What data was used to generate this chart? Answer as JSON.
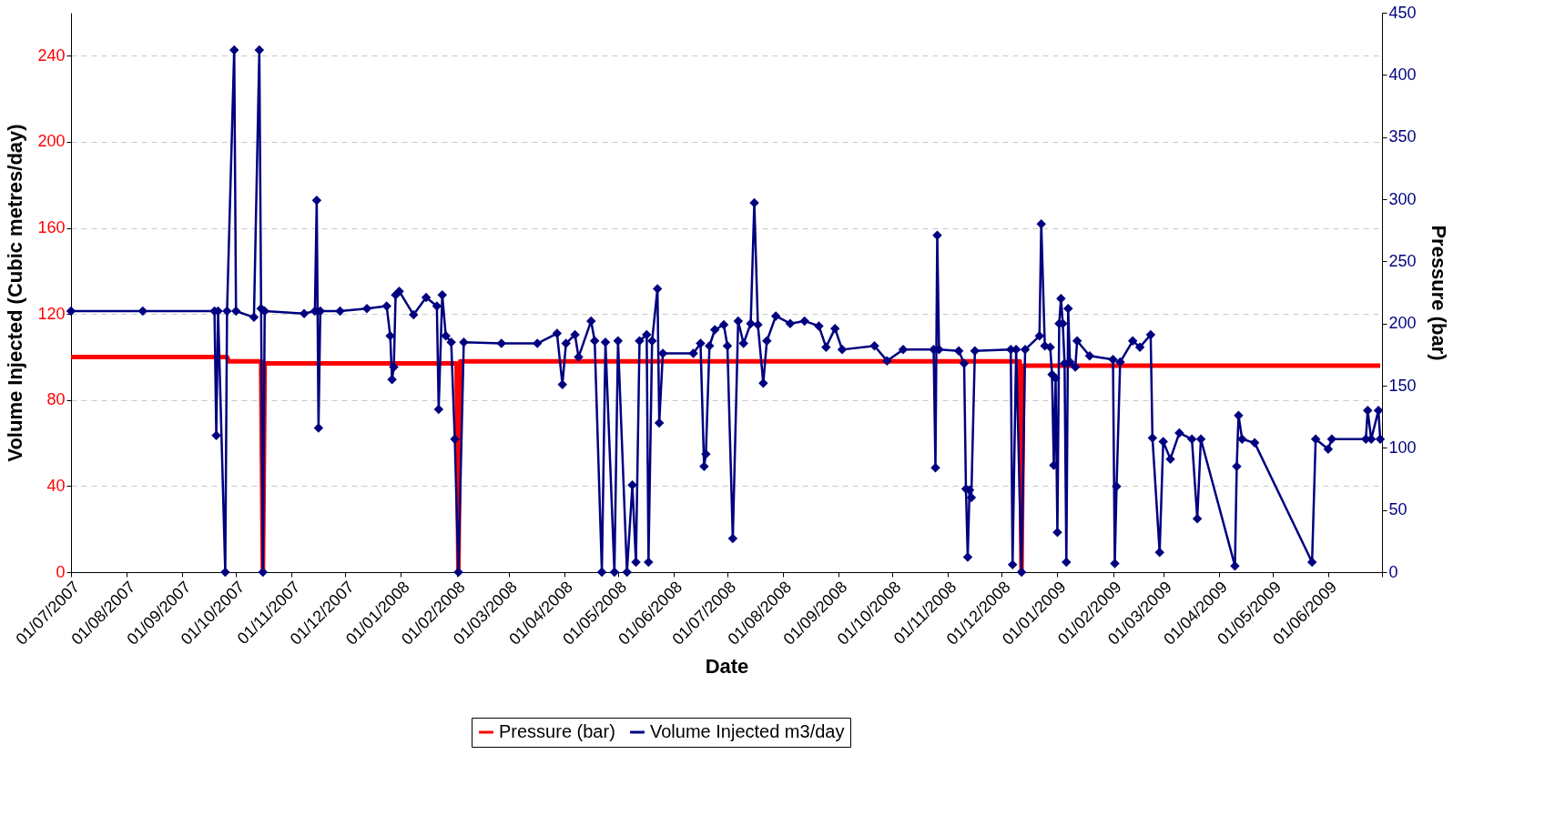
{
  "chart_data": {
    "type": "line",
    "xlabel": "Date",
    "ylabel": "Volume Injected (Cubic metres/day)",
    "y2label": "Pressure (bar)",
    "xlim": [
      "2007-07-01",
      "2009-07-01"
    ],
    "xticks": [
      {
        "value": "2007-07-01",
        "label": "01/07/2007"
      },
      {
        "value": "2007-08-01",
        "label": "01/08/2007"
      },
      {
        "value": "2007-09-01",
        "label": "01/09/2007"
      },
      {
        "value": "2007-10-01",
        "label": "01/10/2007"
      },
      {
        "value": "2007-11-01",
        "label": "01/11/2007"
      },
      {
        "value": "2007-12-01",
        "label": "01/12/2007"
      },
      {
        "value": "2008-01-01",
        "label": "01/01/2008"
      },
      {
        "value": "2008-02-01",
        "label": "01/02/2008"
      },
      {
        "value": "2008-03-01",
        "label": "01/03/2008"
      },
      {
        "value": "2008-04-01",
        "label": "01/04/2008"
      },
      {
        "value": "2008-05-01",
        "label": "01/05/2008"
      },
      {
        "value": "2008-06-01",
        "label": "01/06/2008"
      },
      {
        "value": "2008-07-01",
        "label": "01/07/2008"
      },
      {
        "value": "2008-08-01",
        "label": "01/08/2008"
      },
      {
        "value": "2008-09-01",
        "label": "01/09/2008"
      },
      {
        "value": "2008-10-01",
        "label": "01/10/2008"
      },
      {
        "value": "2008-11-01",
        "label": "01/11/2008"
      },
      {
        "value": "2008-12-01",
        "label": "01/12/2008"
      },
      {
        "value": "2009-01-01",
        "label": "01/01/2009"
      },
      {
        "value": "2009-02-01",
        "label": "01/02/2009"
      },
      {
        "value": "2009-03-01",
        "label": "01/03/2009"
      },
      {
        "value": "2009-04-01",
        "label": "01/04/2009"
      },
      {
        "value": "2009-05-01",
        "label": "01/05/2009"
      },
      {
        "value": "2009-06-01",
        "label": "01/06/2009"
      },
      {
        "value": "2009-07-01",
        "label": null
      }
    ],
    "ylim": [
      0,
      260
    ],
    "yticks": [
      0,
      40,
      80,
      120,
      160,
      200,
      240
    ],
    "y2lim": [
      0,
      450
    ],
    "y2ticks": [
      0,
      50,
      100,
      150,
      200,
      250,
      300,
      350,
      400,
      450
    ],
    "grid": "y",
    "legend": "bottom",
    "series": [
      {
        "name": "Pressure (bar)",
        "color": "#ff0000",
        "line_style": "solid",
        "marker": "none",
        "axis": "y",
        "x": [
          "2007-07-01",
          "2007-09-26",
          "2007-09-27",
          "2007-10-15",
          "2007-10-16",
          "2007-10-17",
          "2008-02-01",
          "2008-02-02",
          "2008-02-03",
          "2008-12-11",
          "2008-12-12",
          "2008-12-13",
          "2009-06-30"
        ],
        "values": [
          100,
          100,
          98,
          98,
          0,
          97,
          97,
          0,
          98,
          98,
          0,
          96,
          96
        ]
      },
      {
        "name": "Volume Injected m3/day",
        "color": "#000080",
        "line_style": "solid",
        "marker": "diamond",
        "axis": "y2",
        "x": [
          "2007-07-01",
          "2007-08-10",
          "2007-09-19",
          "2007-09-20",
          "2007-09-21",
          "2007-09-25",
          "2007-09-26",
          "2007-09-30",
          "2007-10-01",
          "2007-10-11",
          "2007-10-14",
          "2007-10-15",
          "2007-10-16",
          "2007-10-17",
          "2007-11-08",
          "2007-11-14",
          "2007-11-15",
          "2007-11-16",
          "2007-11-17",
          "2007-11-28",
          "2007-12-13",
          "2007-12-24",
          "2007-12-26",
          "2007-12-27",
          "2007-12-28",
          "2007-12-29",
          "2007-12-31",
          "2008-01-08",
          "2008-01-15",
          "2008-01-21",
          "2008-01-22",
          "2008-01-24",
          "2008-01-26",
          "2008-01-29",
          "2008-01-31",
          "2008-02-02",
          "2008-02-05",
          "2008-02-26",
          "2008-03-17",
          "2008-03-28",
          "2008-03-31",
          "2008-04-02",
          "2008-04-07",
          "2008-04-09",
          "2008-04-16",
          "2008-04-18",
          "2008-04-22",
          "2008-04-24",
          "2008-04-29",
          "2008-05-01",
          "2008-05-06",
          "2008-05-09",
          "2008-05-11",
          "2008-05-13",
          "2008-05-17",
          "2008-05-18",
          "2008-05-20",
          "2008-05-23",
          "2008-05-24",
          "2008-05-26",
          "2008-06-12",
          "2008-06-16",
          "2008-06-18",
          "2008-06-19",
          "2008-06-21",
          "2008-06-24",
          "2008-06-29",
          "2008-07-01",
          "2008-07-04",
          "2008-07-07",
          "2008-07-10",
          "2008-07-14",
          "2008-07-16",
          "2008-07-18",
          "2008-07-21",
          "2008-07-23",
          "2008-07-28",
          "2008-08-05",
          "2008-08-13",
          "2008-08-21",
          "2008-08-25",
          "2008-08-30",
          "2008-09-03",
          "2008-09-21",
          "2008-09-28",
          "2008-10-07",
          "2008-10-24",
          "2008-10-25",
          "2008-10-26",
          "2008-10-27",
          "2008-11-07",
          "2008-11-10",
          "2008-11-11",
          "2008-11-12",
          "2008-11-13",
          "2008-11-14",
          "2008-11-16",
          "2008-12-06",
          "2008-12-07",
          "2008-12-09",
          "2008-12-12",
          "2008-12-14",
          "2008-12-22",
          "2008-12-23",
          "2008-12-25",
          "2008-12-28",
          "2008-12-29",
          "2008-12-30",
          "2008-12-31",
          "2009-01-01",
          "2009-01-02",
          "2009-01-03",
          "2009-01-04",
          "2009-01-05",
          "2009-01-06",
          "2009-01-07",
          "2009-01-08",
          "2009-01-11",
          "2009-01-12",
          "2009-01-19",
          "2009-02-01",
          "2009-02-02",
          "2009-02-03",
          "2009-02-05",
          "2009-02-12",
          "2009-02-16",
          "2009-02-22",
          "2009-02-23",
          "2009-02-27",
          "2009-03-01",
          "2009-03-05",
          "2009-03-10",
          "2009-03-17",
          "2009-03-20",
          "2009-03-22",
          "2009-04-10",
          "2009-04-11",
          "2009-04-12",
          "2009-04-14",
          "2009-04-21",
          "2009-05-23",
          "2009-05-25",
          "2009-06-01",
          "2009-06-03",
          "2009-06-22",
          "2009-06-23",
          "2009-06-25",
          "2009-06-29",
          "2009-06-30"
        ],
        "values": [
          210,
          210,
          210,
          110,
          210,
          0,
          210,
          420,
          210,
          205,
          420,
          212,
          0,
          210,
          208,
          210,
          299,
          116,
          210,
          210,
          212,
          214,
          190,
          155,
          165,
          223,
          226,
          207,
          221,
          214,
          131,
          223,
          190,
          185,
          107,
          0,
          185,
          184,
          184,
          192,
          151,
          184,
          191,
          173,
          202,
          186,
          0,
          185,
          0,
          186,
          0,
          70,
          8,
          186,
          191,
          8,
          186,
          228,
          120,
          176,
          176,
          184,
          85,
          95,
          182,
          195,
          199,
          182,
          27,
          202,
          184,
          200,
          297,
          199,
          152,
          186,
          206,
          200,
          202,
          198,
          181,
          196,
          179,
          182,
          170,
          179,
          179,
          84,
          271,
          179,
          178,
          168,
          67,
          12,
          66,
          60,
          178,
          179,
          6,
          179,
          0,
          179,
          190,
          280,
          182,
          181,
          159,
          86,
          156,
          32,
          200,
          220,
          200,
          168,
          8,
          212,
          169,
          165,
          186,
          174,
          171,
          7,
          69,
          169,
          186,
          181,
          191,
          108,
          16,
          105,
          91,
          112,
          107,
          43,
          107,
          5,
          85,
          126,
          107,
          104,
          8,
          107,
          99,
          107,
          107,
          130,
          107,
          130,
          107
        ]
      }
    ]
  }
}
